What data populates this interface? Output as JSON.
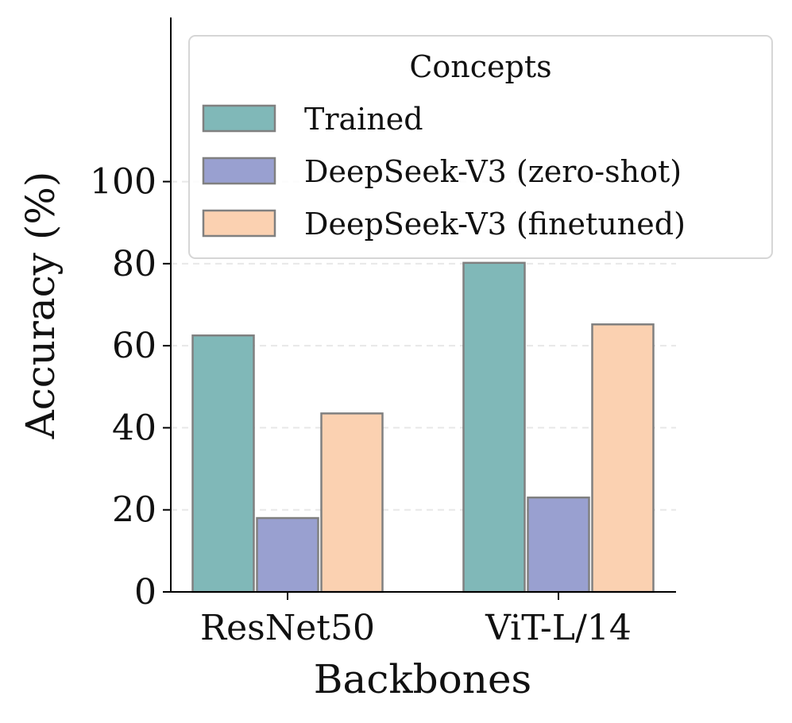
{
  "chart_data": {
    "type": "bar",
    "xlabel": "Backbones",
    "ylabel": "Accuracy (%)",
    "categories": [
      "ResNet50",
      "ViT-L/14"
    ],
    "ylim": [
      0,
      140
    ],
    "yticks": [
      0,
      20,
      40,
      60,
      80,
      100
    ],
    "grid": "horizontal dashed",
    "legend": {
      "title": "Concepts",
      "placement": "top-right"
    },
    "series": [
      {
        "name": "Trained",
        "values": [
          62.5,
          80.2
        ],
        "color": "#80b8b8"
      },
      {
        "name": "DeepSeek-V3 (zero-shot)",
        "values": [
          18.0,
          23.0
        ],
        "color": "#99a0d0"
      },
      {
        "name": "DeepSeek-V3 (finetuned)",
        "values": [
          43.5,
          65.2
        ],
        "color": "#fbd1b1"
      }
    ],
    "bar_edge_color": "#808080"
  }
}
